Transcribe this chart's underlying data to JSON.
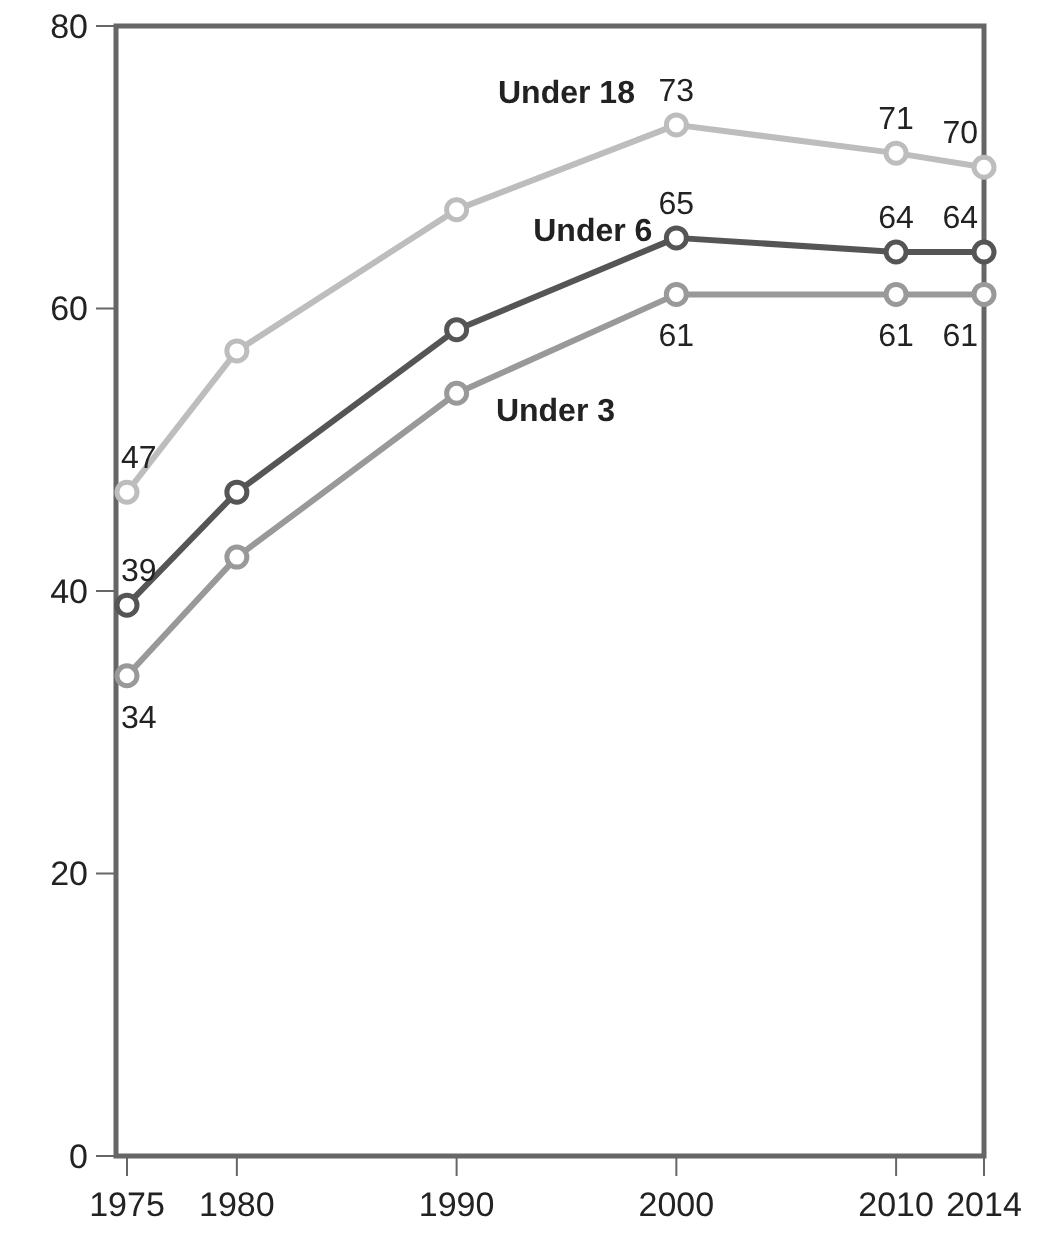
{
  "chart_data": {
    "type": "line",
    "x": [
      1975,
      1980,
      1990,
      2000,
      2010,
      2014
    ],
    "xlim": [
      1974.5,
      2014
    ],
    "xticks": [
      1975,
      1980,
      1990,
      2000,
      2010,
      2014
    ],
    "ylim": [
      0,
      80
    ],
    "yticks": [
      0,
      20,
      40,
      60,
      80
    ],
    "grid": false,
    "marker": "circle",
    "line_style": "solid",
    "series": [
      {
        "name": "Under 18",
        "color": "#bdbdbd",
        "values": [
          47,
          57,
          67,
          73,
          71,
          70
        ],
        "value_labels": [
          "47",
          null,
          null,
          "73",
          "71",
          "70"
        ]
      },
      {
        "name": "Under 6",
        "color": "#555555",
        "values": [
          39,
          47,
          58.5,
          65,
          64,
          64
        ],
        "value_labels": [
          "39",
          null,
          null,
          "65",
          "64",
          "64"
        ]
      },
      {
        "name": "Under 3",
        "color": "#999999",
        "values": [
          34,
          42.4,
          54,
          61,
          61,
          61
        ],
        "value_labels": [
          "34",
          null,
          null,
          "61",
          "61",
          "61"
        ]
      }
    ]
  }
}
